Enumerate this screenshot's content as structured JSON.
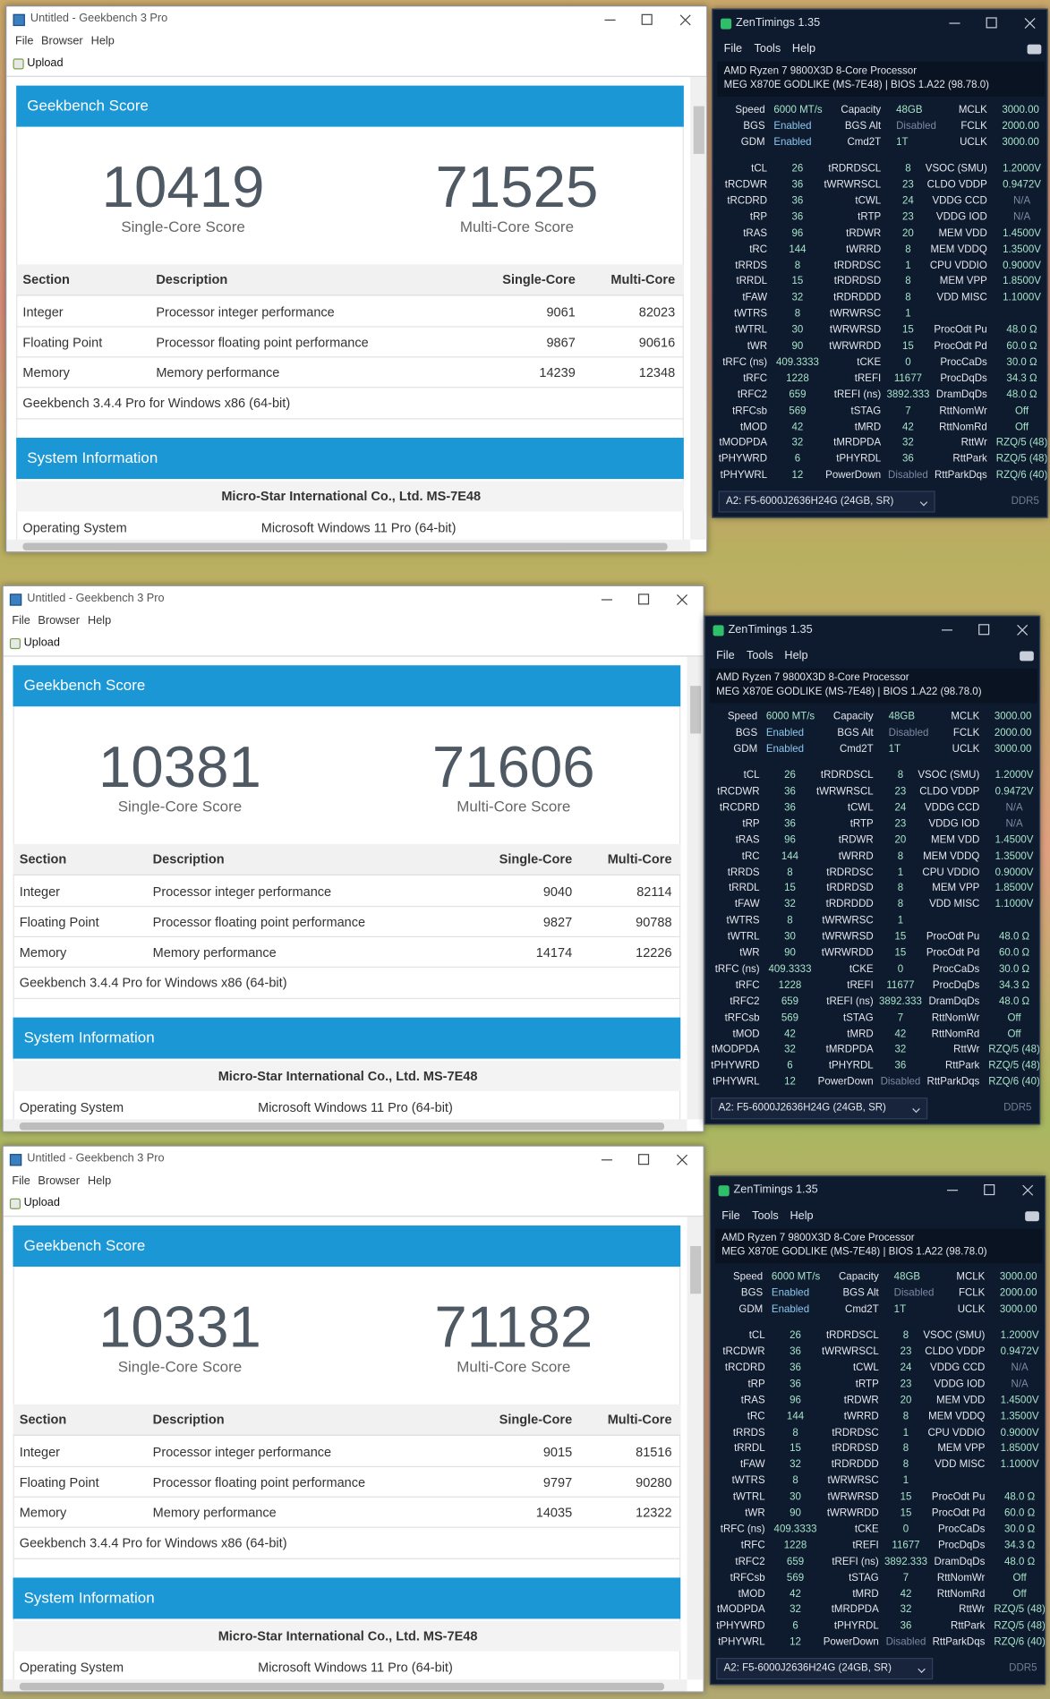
{
  "geekbench": {
    "title": "Untitled - Geekbench 3 Pro",
    "menu": [
      "File",
      "Browser",
      "Help"
    ],
    "toolbar": "Upload",
    "score_header": "Geekbench Score",
    "single_label": "Single-Core Score",
    "multi_label": "Multi-Core Score",
    "header": [
      "Section",
      "Description",
      "Single-Core",
      "Multi-Core"
    ],
    "sections": [
      [
        "Integer",
        "Processor integer performance"
      ],
      [
        "Floating Point",
        "Processor floating point performance"
      ],
      [
        "Memory",
        "Memory performance"
      ]
    ],
    "version": "Geekbench 3.4.4 Pro for Windows x86 (64-bit)",
    "sysinfo_header": "System Information",
    "sysinfo_title": "Micro-Star International Co., Ltd. MS-7E48",
    "os": [
      "Operating System",
      "Microsoft Windows 11 Pro (64-bit)"
    ]
  },
  "results": [
    {
      "single_score": 10419,
      "multi_score": 71525,
      "single": [
        9061,
        9867,
        14239
      ],
      "multi": [
        82023,
        90616,
        12348
      ]
    },
    {
      "single_score": 10381,
      "multi_score": 71606,
      "single": [
        9040,
        9827,
        14174
      ],
      "multi": [
        82114,
        90788,
        12226
      ]
    },
    {
      "single_score": 10331,
      "multi_score": 71182,
      "single": [
        9015,
        9797,
        14035
      ],
      "multi": [
        81516,
        90280,
        12322
      ]
    }
  ],
  "zentimings": {
    "title": "ZenTimings 1.35",
    "menu": [
      "File",
      "Tools",
      "Help"
    ],
    "cpu": "AMD Ryzen 7 9800X3D 8-Core Processor",
    "board": "MEG X870E GODLIKE (MS-7E48) | BIOS 1.A22 (98.78.0)",
    "top": [
      [
        "Speed",
        "6000 MT/s",
        "Capacity",
        "48GB",
        "MCLK",
        "3000.00"
      ],
      [
        "BGS",
        "Enabled",
        "BGS Alt",
        "Disabled",
        "FCLK",
        "2000.00"
      ],
      [
        "GDM",
        "Enabled",
        "Cmd2T",
        "1T",
        "UCLK",
        "3000.00"
      ]
    ],
    "timings": [
      [
        "tCL",
        "26",
        "tRDRDSCL",
        "8",
        "VSOC (SMU)",
        "1.2000V"
      ],
      [
        "tRCDWR",
        "36",
        "tWRWRSCL",
        "23",
        "CLDO VDDP",
        "0.9472V"
      ],
      [
        "tRCDRD",
        "36",
        "tCWL",
        "24",
        "VDDG CCD",
        "N/A"
      ],
      [
        "tRP",
        "36",
        "tRTP",
        "23",
        "VDDG IOD",
        "N/A"
      ],
      [
        "tRAS",
        "96",
        "tRDWR",
        "20",
        "MEM VDD",
        "1.4500V"
      ],
      [
        "tRC",
        "144",
        "tWRRD",
        "8",
        "MEM VDDQ",
        "1.3500V"
      ],
      [
        "tRRDS",
        "8",
        "tRDRDSC",
        "1",
        "CPU VDDIO",
        "0.9000V"
      ],
      [
        "tRRDL",
        "15",
        "tRDRDSD",
        "8",
        "MEM VPP",
        "1.8500V"
      ],
      [
        "tFAW",
        "32",
        "tRDRDDD",
        "8",
        "VDD MISC",
        "1.1000V"
      ],
      [
        "tWTRS",
        "8",
        "tWRWRSC",
        "1"
      ],
      [
        "tWTRL",
        "30",
        "tWRWRSD",
        "15",
        "ProcOdt Pu",
        "48.0 Ω"
      ],
      [
        "tWR",
        "90",
        "tWRWRDD",
        "15",
        "ProcOdt Pd",
        "60.0 Ω"
      ],
      [
        "tRFC (ns)",
        "409.3333",
        "tCKE",
        "0",
        "ProcCaDs",
        "30.0 Ω"
      ],
      [
        "tRFC",
        "1228",
        "tREFI",
        "11677",
        "ProcDqDs",
        "34.3 Ω"
      ],
      [
        "tRFC2",
        "659",
        "tREFI (ns)",
        "3892.333",
        "DramDqDs",
        "48.0 Ω"
      ],
      [
        "tRFCsb",
        "569",
        "tSTAG",
        "7",
        "RttNomWr",
        "Off"
      ],
      [
        "tMOD",
        "42",
        "tMRD",
        "42",
        "RttNomRd",
        "Off"
      ],
      [
        "tMODPDA",
        "32",
        "tMRDPDA",
        "32",
        "RttWr",
        "RZQ/5 (48)"
      ],
      [
        "tPHYWRD",
        "6",
        "tPHYRDL",
        "36",
        "RttPark",
        "RZQ/5 (48)"
      ],
      [
        "tPHYWRL",
        "12",
        "PowerDown",
        "Disabled",
        "RttParkDqs",
        "RZQ/6 (40)"
      ]
    ],
    "dimm": "A2: F5-6000J2636H24G (24GB, SR)",
    "ddr": "DDR5"
  }
}
